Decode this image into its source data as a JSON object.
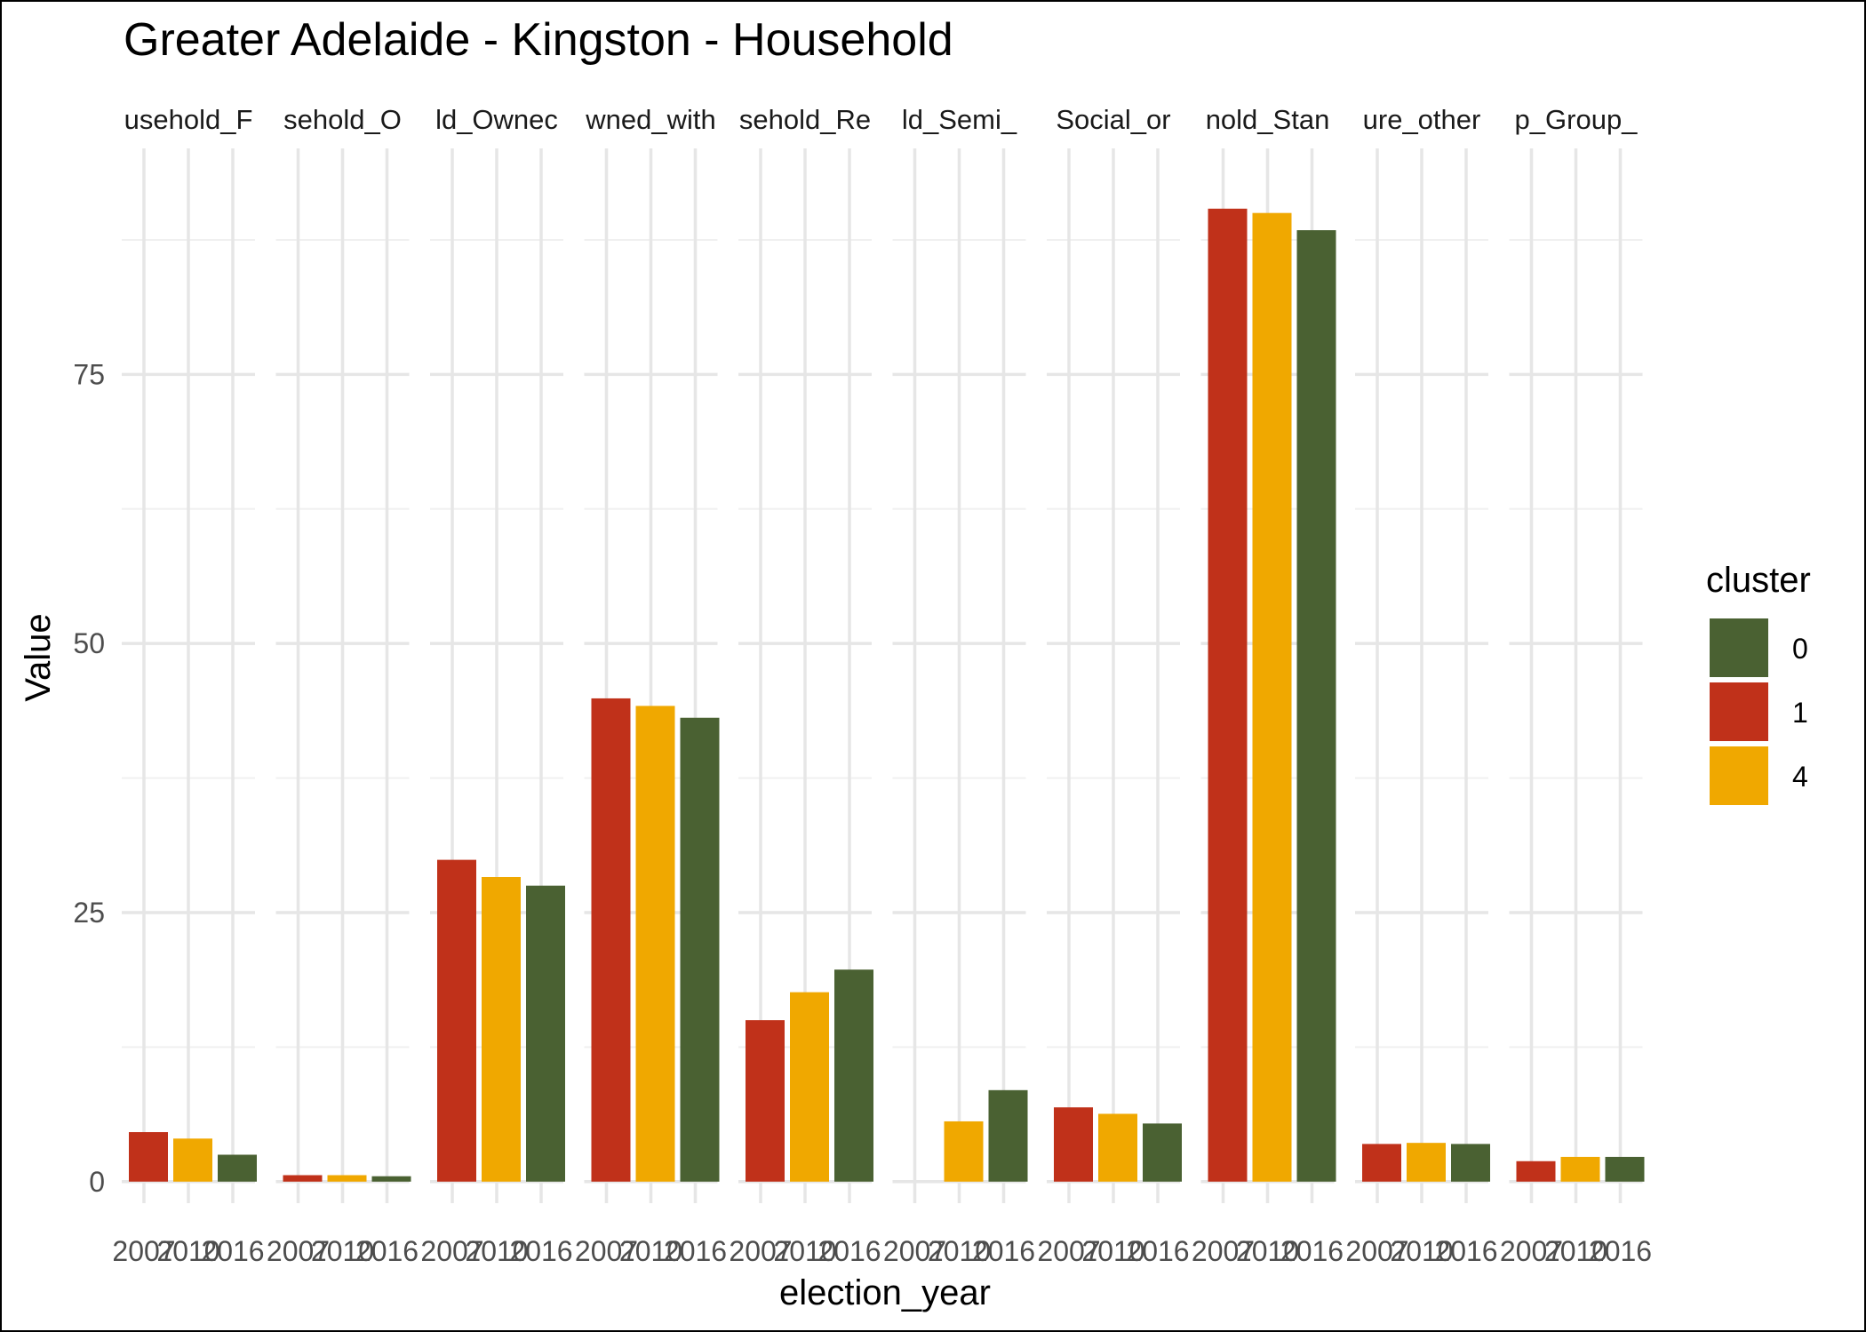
{
  "chart_data": {
    "type": "bar",
    "title": "Greater Adelaide - Kingston - Household",
    "xlabel": "election_year",
    "ylabel": "Value",
    "ylim": [
      -2,
      96
    ],
    "yticks": [
      0,
      25,
      50,
      75
    ],
    "categories": [
      "2007",
      "2010",
      "2016"
    ],
    "grid": true,
    "legend": {
      "title": "cluster",
      "position": "right",
      "entries": [
        "0",
        "1",
        "4"
      ]
    },
    "colors": {
      "0": "#4a6132",
      "1": "#c0311a",
      "4": "#f0a800"
    },
    "panels": [
      {
        "label": "usehold_F",
        "bars": [
          {
            "year": "2007",
            "cluster": "1",
            "value": 4.6
          },
          {
            "year": "2010",
            "cluster": "4",
            "value": 4.0
          },
          {
            "year": "2016",
            "cluster": "0",
            "value": 2.5
          }
        ]
      },
      {
        "label": "sehold_O",
        "bars": [
          {
            "year": "2007",
            "cluster": "1",
            "value": 0.6
          },
          {
            "year": "2010",
            "cluster": "4",
            "value": 0.6
          },
          {
            "year": "2016",
            "cluster": "0",
            "value": 0.5
          }
        ]
      },
      {
        "label": "ld_Ownec",
        "bars": [
          {
            "year": "2007",
            "cluster": "1",
            "value": 29.9
          },
          {
            "year": "2010",
            "cluster": "4",
            "value": 28.3
          },
          {
            "year": "2016",
            "cluster": "0",
            "value": 27.5
          }
        ]
      },
      {
        "label": "wned_with",
        "bars": [
          {
            "year": "2007",
            "cluster": "1",
            "value": 44.9
          },
          {
            "year": "2010",
            "cluster": "4",
            "value": 44.2
          },
          {
            "year": "2016",
            "cluster": "0",
            "value": 43.1
          }
        ]
      },
      {
        "label": "sehold_Re",
        "bars": [
          {
            "year": "2007",
            "cluster": "1",
            "value": 15.0
          },
          {
            "year": "2010",
            "cluster": "4",
            "value": 17.6
          },
          {
            "year": "2016",
            "cluster": "0",
            "value": 19.7
          }
        ]
      },
      {
        "label": "ld_Semi_",
        "bars": [
          {
            "year": "2010",
            "cluster": "4",
            "value": 5.6
          },
          {
            "year": "2016",
            "cluster": "0",
            "value": 8.5
          }
        ]
      },
      {
        "label": "Social_or",
        "bars": [
          {
            "year": "2007",
            "cluster": "1",
            "value": 6.9
          },
          {
            "year": "2010",
            "cluster": "4",
            "value": 6.3
          },
          {
            "year": "2016",
            "cluster": "0",
            "value": 5.4
          }
        ]
      },
      {
        "label": "nold_Stan",
        "bars": [
          {
            "year": "2007",
            "cluster": "1",
            "value": 90.4
          },
          {
            "year": "2010",
            "cluster": "4",
            "value": 90.0
          },
          {
            "year": "2016",
            "cluster": "0",
            "value": 88.4
          }
        ]
      },
      {
        "label": "ure_other",
        "bars": [
          {
            "year": "2007",
            "cluster": "1",
            "value": 3.5
          },
          {
            "year": "2010",
            "cluster": "4",
            "value": 3.6
          },
          {
            "year": "2016",
            "cluster": "0",
            "value": 3.5
          }
        ]
      },
      {
        "label": "p_Group_",
        "bars": [
          {
            "year": "2007",
            "cluster": "1",
            "value": 1.9
          },
          {
            "year": "2010",
            "cluster": "4",
            "value": 2.3
          },
          {
            "year": "2016",
            "cluster": "0",
            "value": 2.3
          }
        ]
      }
    ]
  }
}
